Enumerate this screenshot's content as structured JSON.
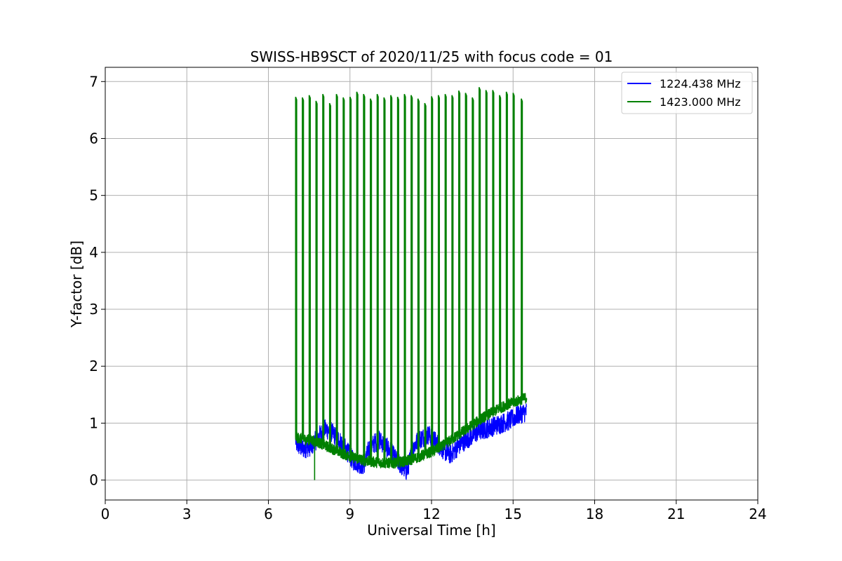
{
  "chart_data": {
    "type": "line",
    "title": "SWISS-HB9SCT of 2020/11/25 with focus code = 01",
    "xlabel": "Universal Time [h]",
    "ylabel": "Y-factor [dB]",
    "xlim": [
      0,
      24
    ],
    "ylim": [
      -0.35,
      7.25
    ],
    "xticks": [
      0,
      3,
      6,
      9,
      12,
      15,
      18,
      21,
      24
    ],
    "xtick_labels": [
      "0",
      "3",
      "6",
      "9",
      "12",
      "15",
      "18",
      "21",
      "24"
    ],
    "yticks": [
      0,
      1,
      2,
      3,
      4,
      5,
      6,
      7
    ],
    "ytick_labels": [
      "0",
      "1",
      "2",
      "3",
      "4",
      "5",
      "6",
      "7"
    ],
    "grid": true,
    "legend_position": "top-right",
    "series": [
      {
        "name": "1224.438 MHz",
        "color": "#0000ff",
        "x": [
          7.0,
          7.0,
          7.05,
          7.3,
          7.6,
          7.9,
          8.1,
          8.3,
          8.5,
          8.7,
          8.9,
          9.1,
          9.3,
          9.5,
          9.7,
          9.9,
          10.1,
          10.3,
          10.5,
          10.7,
          10.9,
          11.1,
          11.3,
          11.5,
          11.7,
          11.9,
          12.1,
          12.3,
          12.5,
          12.7,
          12.9,
          13.1,
          13.4,
          13.7,
          14.0,
          14.3,
          14.6,
          14.9,
          15.2,
          15.5
        ],
        "values": [
          2.0,
          0.7,
          0.62,
          0.55,
          0.6,
          0.8,
          0.9,
          0.85,
          0.75,
          0.65,
          0.5,
          0.35,
          0.3,
          0.25,
          0.55,
          0.65,
          0.7,
          0.6,
          0.5,
          0.35,
          0.25,
          0.15,
          0.55,
          0.7,
          0.75,
          0.8,
          0.7,
          0.6,
          0.5,
          0.45,
          0.55,
          0.65,
          0.75,
          0.85,
          0.9,
          0.95,
          1.0,
          1.05,
          1.15,
          1.2
        ]
      },
      {
        "name": "1423.000 MHz",
        "color": "#008000",
        "x": [
          7.0,
          7.3,
          7.6,
          7.9,
          8.2,
          8.5,
          8.8,
          9.1,
          9.4,
          9.7,
          10.0,
          10.3,
          10.6,
          10.9,
          11.2,
          11.5,
          11.8,
          12.1,
          12.4,
          12.7,
          13.0,
          13.3,
          13.6,
          13.9,
          14.2,
          14.5,
          14.8,
          15.1,
          15.5
        ],
        "values": [
          0.75,
          0.72,
          0.7,
          0.65,
          0.58,
          0.52,
          0.45,
          0.4,
          0.36,
          0.33,
          0.31,
          0.3,
          0.3,
          0.32,
          0.35,
          0.4,
          0.46,
          0.52,
          0.6,
          0.7,
          0.8,
          0.9,
          1.0,
          1.1,
          1.18,
          1.26,
          1.33,
          1.38,
          1.45
        ],
        "spikes": [
          {
            "x": 7.0,
            "y": 6.73
          },
          {
            "x": 7.25,
            "y": 6.72
          },
          {
            "x": 7.5,
            "y": 6.76
          },
          {
            "x": 7.75,
            "y": 6.66
          },
          {
            "x": 8.0,
            "y": 6.78
          },
          {
            "x": 8.25,
            "y": 6.62
          },
          {
            "x": 8.5,
            "y": 6.78
          },
          {
            "x": 8.75,
            "y": 6.72
          },
          {
            "x": 9.0,
            "y": 6.73
          },
          {
            "x": 9.25,
            "y": 6.82
          },
          {
            "x": 9.5,
            "y": 6.78
          },
          {
            "x": 9.75,
            "y": 6.7
          },
          {
            "x": 10.0,
            "y": 6.78
          },
          {
            "x": 10.25,
            "y": 6.72
          },
          {
            "x": 10.5,
            "y": 6.76
          },
          {
            "x": 10.75,
            "y": 6.73
          },
          {
            "x": 11.0,
            "y": 6.78
          },
          {
            "x": 11.25,
            "y": 6.76
          },
          {
            "x": 11.5,
            "y": 6.7
          },
          {
            "x": 11.75,
            "y": 6.62
          },
          {
            "x": 12.0,
            "y": 6.74
          },
          {
            "x": 12.25,
            "y": 6.76
          },
          {
            "x": 12.5,
            "y": 6.78
          },
          {
            "x": 12.75,
            "y": 6.76
          },
          {
            "x": 13.0,
            "y": 6.84
          },
          {
            "x": 13.25,
            "y": 6.8
          },
          {
            "x": 13.5,
            "y": 6.72
          },
          {
            "x": 13.75,
            "y": 6.9
          },
          {
            "x": 14.0,
            "y": 6.85
          },
          {
            "x": 14.25,
            "y": 6.85
          },
          {
            "x": 14.5,
            "y": 6.76
          },
          {
            "x": 14.75,
            "y": 6.82
          },
          {
            "x": 15.0,
            "y": 6.8
          },
          {
            "x": 15.3,
            "y": 6.7
          }
        ],
        "dropout": {
          "x": 7.7,
          "y": 0.0
        }
      }
    ]
  }
}
